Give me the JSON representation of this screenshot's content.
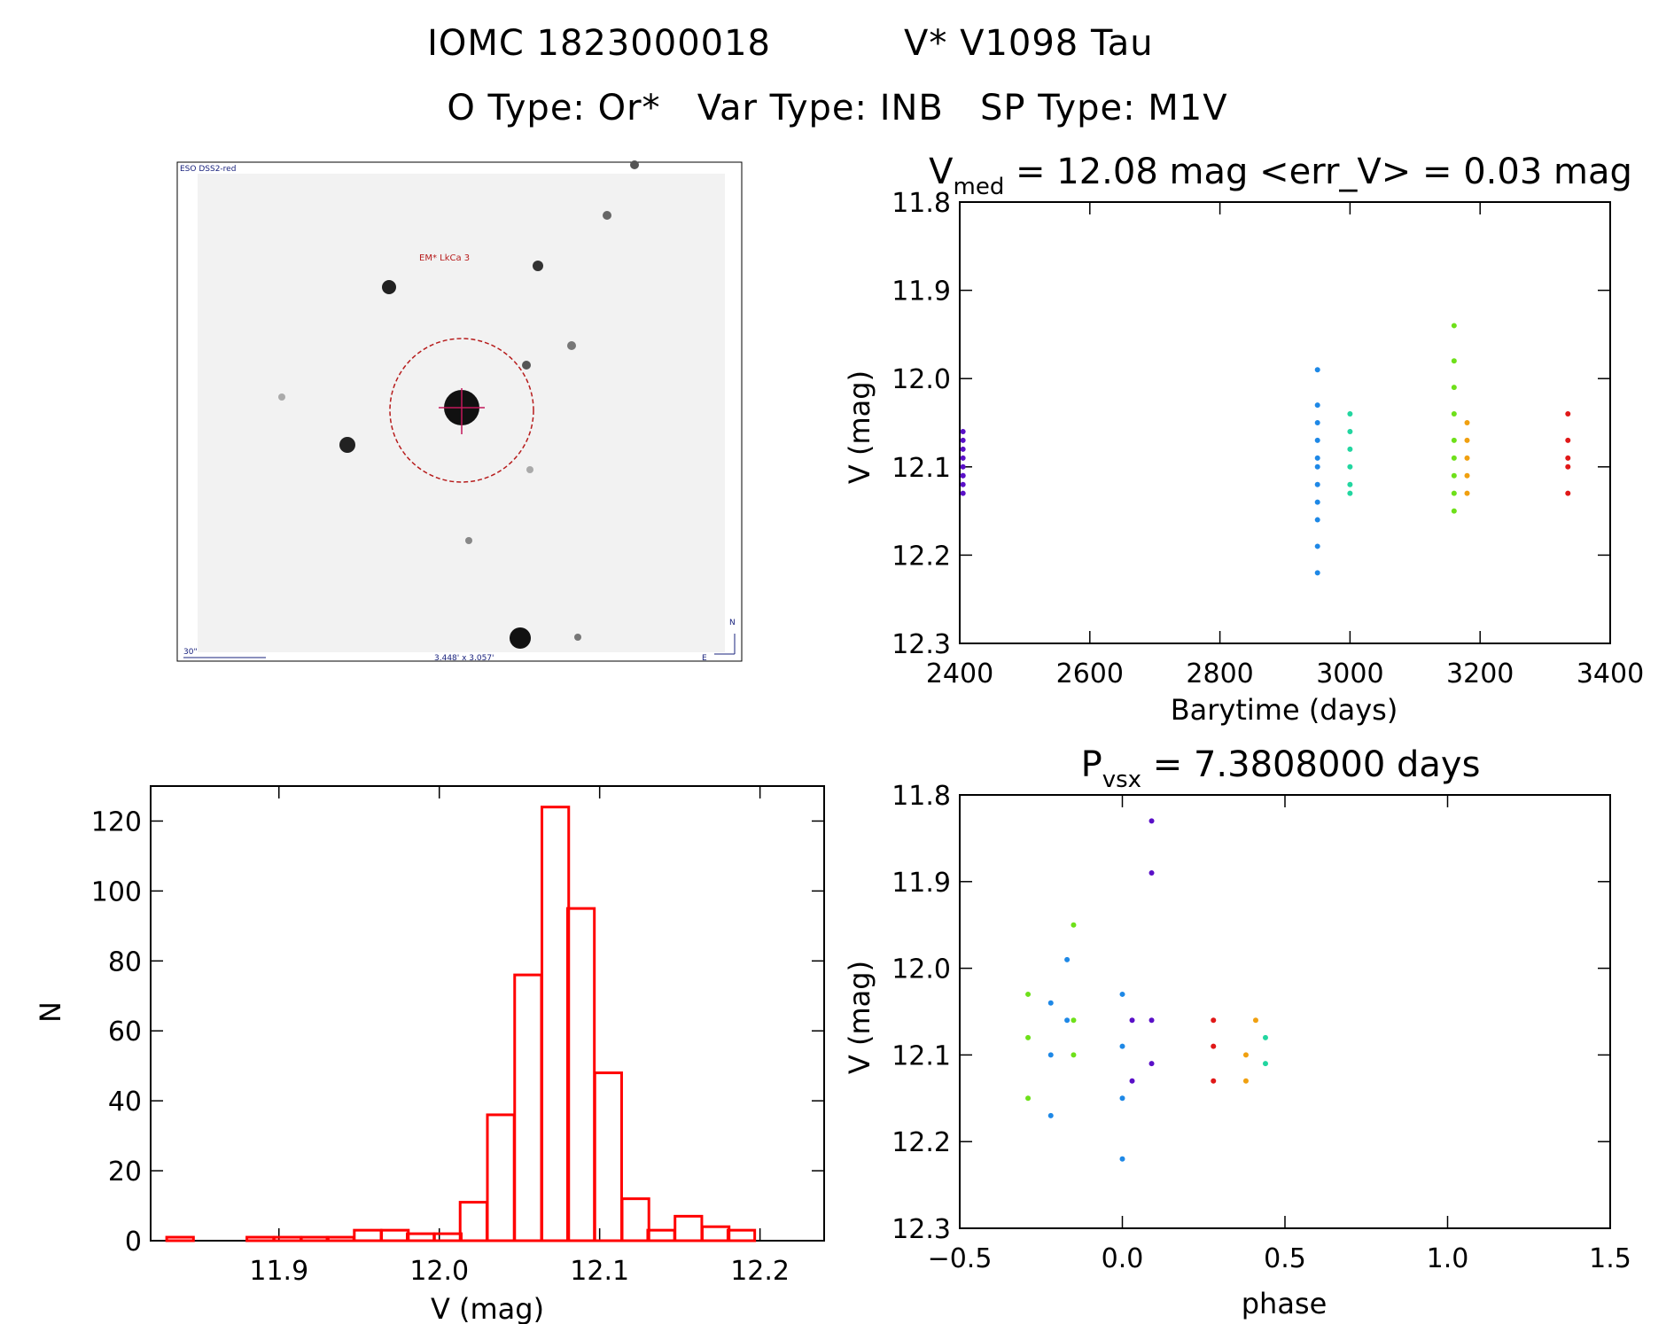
{
  "header": {
    "line1_id": "IOMC 1823000018",
    "line1_name": "V* V1098 Tau",
    "line2": "O Type: Or*   Var Type: INB   SP Type: M1V"
  },
  "image_panel": {
    "survey_label": "ESO DSS2-red",
    "target_label": "EM* LkCa 3",
    "scale_label": "30\"",
    "size_label": "3.448' x 3.057'",
    "north_label": "N",
    "east_label": "E"
  },
  "colors": {
    "violet": "#5a10c8",
    "blue": "#1e88e6",
    "cyan_green": "#22d6a0",
    "green": "#6ee01a",
    "orange": "#f0a010",
    "red": "#e01818",
    "hist": "#ff0000"
  },
  "chart_data": [
    {
      "type": "scatter",
      "id": "lightcurve",
      "title": "V_med = 12.08 mag <err_V> = 0.03 mag",
      "title_parts": {
        "v": "V",
        "sub": "med",
        "rest": " = 12.08 mag <err_V> = 0.03 mag"
      },
      "xlabel": "Barytime (days)",
      "ylabel": "V (mag)",
      "xlim": [
        2400,
        3400
      ],
      "ylim": [
        11.8,
        12.3
      ],
      "y_inverted": true,
      "xticks": [
        "2400",
        "2600",
        "2800",
        "3000",
        "3200",
        "3400"
      ],
      "yticks": [
        "11.8",
        "11.9",
        "12.0",
        "12.1",
        "12.2",
        "12.3"
      ],
      "series": [
        {
          "color_key": "violet",
          "points": [
            [
              2405,
              12.06
            ],
            [
              2405,
              12.09
            ],
            [
              2405,
              12.1
            ],
            [
              2405,
              12.11
            ],
            [
              2405,
              12.12
            ],
            [
              2405,
              12.13
            ],
            [
              2405,
              12.08
            ],
            [
              2405,
              12.07
            ],
            [
              2405,
              12.11
            ]
          ]
        },
        {
          "color_key": "blue",
          "points": [
            [
              2950,
              11.99
            ],
            [
              2950,
              12.03
            ],
            [
              2950,
              12.05
            ],
            [
              2950,
              12.07
            ],
            [
              2950,
              12.09
            ],
            [
              2950,
              12.1
            ],
            [
              2950,
              12.12
            ],
            [
              2950,
              12.14
            ],
            [
              2950,
              12.16
            ],
            [
              2950,
              12.19
            ],
            [
              2950,
              12.22
            ]
          ]
        },
        {
          "color_key": "cyan_green",
          "points": [
            [
              3000,
              12.04
            ],
            [
              3000,
              12.06
            ],
            [
              3000,
              12.08
            ],
            [
              3000,
              12.1
            ],
            [
              3000,
              12.12
            ],
            [
              3000,
              12.13
            ]
          ]
        },
        {
          "color_key": "green",
          "points": [
            [
              3160,
              11.94
            ],
            [
              3160,
              11.98
            ],
            [
              3160,
              12.01
            ],
            [
              3160,
              12.04
            ],
            [
              3160,
              12.07
            ],
            [
              3160,
              12.09
            ],
            [
              3160,
              12.11
            ],
            [
              3160,
              12.13
            ],
            [
              3160,
              12.15
            ]
          ]
        },
        {
          "color_key": "orange",
          "points": [
            [
              3180,
              12.05
            ],
            [
              3180,
              12.07
            ],
            [
              3180,
              12.09
            ],
            [
              3180,
              12.11
            ],
            [
              3180,
              12.13
            ]
          ]
        },
        {
          "color_key": "red",
          "points": [
            [
              3335,
              12.04
            ],
            [
              3335,
              12.07
            ],
            [
              3335,
              12.09
            ],
            [
              3335,
              12.1
            ],
            [
              3335,
              12.13
            ]
          ]
        }
      ]
    },
    {
      "type": "bar",
      "id": "histogram",
      "xlabel": "V (mag)",
      "ylabel": "N",
      "xlim": [
        11.82,
        12.24
      ],
      "ylim": [
        0,
        130
      ],
      "xticks": [
        "11.9",
        "12.0",
        "12.1",
        "12.2"
      ],
      "yticks": [
        "0",
        "20",
        "40",
        "60",
        "80",
        "100",
        "120"
      ],
      "bin_width": 0.0167,
      "bin_starts": [
        11.83,
        11.88,
        11.897,
        11.914,
        11.93,
        11.947,
        11.964,
        11.98,
        11.997,
        12.013,
        12.03,
        12.047,
        12.064,
        12.08,
        12.097,
        12.114,
        12.13,
        12.147,
        12.164,
        12.18,
        12.197
      ],
      "values": [
        1,
        1,
        1,
        1,
        1,
        3,
        3,
        2,
        2,
        11,
        36,
        76,
        124,
        95,
        48,
        12,
        3,
        7,
        4,
        3,
        0
      ]
    },
    {
      "type": "scatter",
      "id": "phased",
      "title": "P_vsx = 7.3808000 days",
      "title_parts": {
        "p": "P",
        "sub": "vsx",
        "rest": " = 7.3808000 days"
      },
      "xlabel": "phase",
      "ylabel": "V (mag)",
      "xlim": [
        -0.5,
        1.5
      ],
      "ylim": [
        11.8,
        12.3
      ],
      "y_inverted": true,
      "xticks": [
        "−0.5",
        "0.0",
        "0.5",
        "1.0",
        "1.5"
      ],
      "yticks": [
        "11.8",
        "11.9",
        "12.0",
        "12.1",
        "12.2",
        "12.3"
      ],
      "series": [
        {
          "color_key": "green",
          "points": [
            [
              -0.29,
              12.03
            ],
            [
              -0.29,
              12.08
            ],
            [
              -0.29,
              12.15
            ],
            [
              -0.15,
              11.95
            ],
            [
              -0.15,
              12.06
            ],
            [
              -0.15,
              12.1
            ]
          ]
        },
        {
          "color_key": "blue",
          "points": [
            [
              -0.22,
              12.04
            ],
            [
              -0.22,
              12.1
            ],
            [
              -0.22,
              12.17
            ],
            [
              -0.17,
              11.99
            ],
            [
              -0.17,
              12.06
            ],
            [
              0.0,
              12.03
            ],
            [
              0.0,
              12.09
            ],
            [
              0.0,
              12.15
            ],
            [
              0.0,
              12.22
            ]
          ]
        },
        {
          "color_key": "violet",
          "points": [
            [
              0.03,
              12.06
            ],
            [
              0.03,
              12.13
            ],
            [
              0.09,
              11.83
            ],
            [
              0.09,
              11.89
            ],
            [
              0.09,
              12.06
            ],
            [
              0.09,
              12.11
            ]
          ]
        },
        {
          "color_key": "red",
          "points": [
            [
              0.28,
              12.06
            ],
            [
              0.28,
              12.09
            ],
            [
              0.28,
              12.13
            ]
          ]
        },
        {
          "color_key": "orange",
          "points": [
            [
              0.38,
              12.1
            ],
            [
              0.38,
              12.13
            ],
            [
              0.41,
              12.06
            ]
          ]
        },
        {
          "color_key": "cyan_green",
          "points": [
            [
              0.44,
              12.08
            ],
            [
              0.44,
              12.11
            ]
          ]
        }
      ]
    }
  ]
}
